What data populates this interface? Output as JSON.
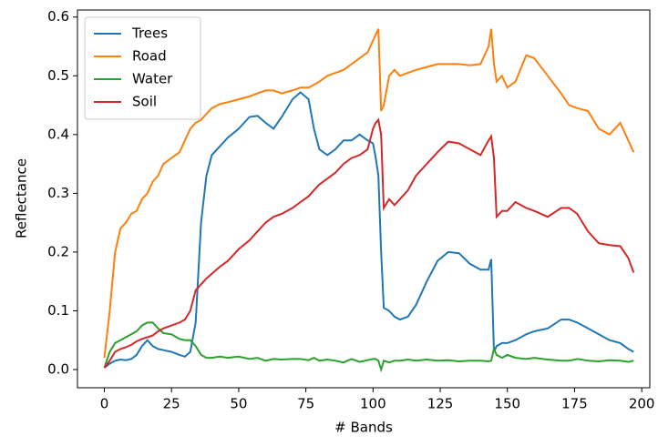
{
  "chart_data": {
    "type": "line",
    "xlabel": "# Bands",
    "ylabel": "Reflectance",
    "x": [
      0,
      2,
      4,
      6,
      8,
      10,
      12,
      14,
      16,
      18,
      20,
      22,
      25,
      28,
      30,
      32,
      34,
      36,
      38,
      40,
      43,
      46,
      50,
      54,
      57,
      60,
      63,
      66,
      70,
      73,
      76,
      78,
      80,
      83,
      86,
      89,
      92,
      95,
      98,
      100,
      101,
      102,
      103,
      104,
      106,
      108,
      110,
      113,
      116,
      120,
      124,
      128,
      132,
      136,
      140,
      143,
      144,
      145,
      146,
      148,
      150,
      153,
      157,
      160,
      165,
      170,
      173,
      176,
      180,
      184,
      188,
      192,
      195,
      197
    ],
    "series": [
      {
        "name": "Trees",
        "color": "#1f77b4",
        "values": [
          0.003,
          0.01,
          0.015,
          0.017,
          0.016,
          0.018,
          0.025,
          0.04,
          0.05,
          0.04,
          0.035,
          0.033,
          0.03,
          0.025,
          0.022,
          0.03,
          0.08,
          0.25,
          0.33,
          0.365,
          0.38,
          0.395,
          0.41,
          0.43,
          0.432,
          0.42,
          0.41,
          0.43,
          0.46,
          0.472,
          0.46,
          0.41,
          0.375,
          0.365,
          0.375,
          0.39,
          0.39,
          0.4,
          0.39,
          0.385,
          0.36,
          0.33,
          0.2,
          0.105,
          0.1,
          0.09,
          0.085,
          0.09,
          0.11,
          0.15,
          0.185,
          0.2,
          0.198,
          0.18,
          0.17,
          0.17,
          0.188,
          0.03,
          0.04,
          0.045,
          0.045,
          0.05,
          0.06,
          0.065,
          0.07,
          0.085,
          0.085,
          0.08,
          0.07,
          0.06,
          0.05,
          0.045,
          0.035,
          0.03
        ]
      },
      {
        "name": "Road",
        "color": "#ff7f0e",
        "values": [
          0.02,
          0.1,
          0.2,
          0.24,
          0.25,
          0.265,
          0.27,
          0.29,
          0.3,
          0.32,
          0.33,
          0.35,
          0.36,
          0.37,
          0.39,
          0.41,
          0.42,
          0.425,
          0.435,
          0.445,
          0.452,
          0.455,
          0.46,
          0.465,
          0.47,
          0.475,
          0.475,
          0.47,
          0.475,
          0.48,
          0.48,
          0.485,
          0.49,
          0.5,
          0.505,
          0.51,
          0.52,
          0.53,
          0.54,
          0.56,
          0.57,
          0.58,
          0.44,
          0.45,
          0.5,
          0.51,
          0.5,
          0.505,
          0.51,
          0.515,
          0.52,
          0.52,
          0.52,
          0.518,
          0.52,
          0.55,
          0.58,
          0.52,
          0.49,
          0.5,
          0.48,
          0.49,
          0.535,
          0.53,
          0.5,
          0.47,
          0.45,
          0.445,
          0.44,
          0.41,
          0.4,
          0.42,
          0.39,
          0.37
        ]
      },
      {
        "name": "Water",
        "color": "#2ca02c",
        "values": [
          0.003,
          0.03,
          0.045,
          0.05,
          0.055,
          0.06,
          0.065,
          0.075,
          0.08,
          0.08,
          0.07,
          0.062,
          0.06,
          0.052,
          0.05,
          0.05,
          0.04,
          0.025,
          0.02,
          0.02,
          0.022,
          0.02,
          0.022,
          0.018,
          0.02,
          0.015,
          0.018,
          0.017,
          0.018,
          0.018,
          0.016,
          0.02,
          0.015,
          0.017,
          0.015,
          0.012,
          0.018,
          0.013,
          0.016,
          0.018,
          0.018,
          0.015,
          0.0,
          0.015,
          0.012,
          0.015,
          0.015,
          0.017,
          0.015,
          0.017,
          0.015,
          0.016,
          0.014,
          0.015,
          0.015,
          0.014,
          0.015,
          0.035,
          0.025,
          0.02,
          0.025,
          0.02,
          0.018,
          0.02,
          0.017,
          0.015,
          0.015,
          0.018,
          0.015,
          0.014,
          0.016,
          0.015,
          0.013,
          0.015
        ]
      },
      {
        "name": "Soil",
        "color": "#d62728",
        "values": [
          0.003,
          0.015,
          0.03,
          0.035,
          0.038,
          0.042,
          0.048,
          0.052,
          0.055,
          0.058,
          0.065,
          0.07,
          0.075,
          0.08,
          0.085,
          0.1,
          0.135,
          0.145,
          0.155,
          0.163,
          0.175,
          0.185,
          0.205,
          0.22,
          0.235,
          0.25,
          0.26,
          0.265,
          0.275,
          0.285,
          0.295,
          0.305,
          0.315,
          0.325,
          0.335,
          0.35,
          0.36,
          0.365,
          0.375,
          0.41,
          0.42,
          0.425,
          0.4,
          0.275,
          0.29,
          0.28,
          0.29,
          0.305,
          0.33,
          0.35,
          0.37,
          0.388,
          0.385,
          0.375,
          0.365,
          0.39,
          0.397,
          0.36,
          0.26,
          0.27,
          0.27,
          0.285,
          0.275,
          0.27,
          0.26,
          0.275,
          0.275,
          0.265,
          0.235,
          0.215,
          0.212,
          0.21,
          0.19,
          0.165
        ]
      }
    ],
    "xlim": [
      -10,
      203
    ],
    "ylim": [
      -0.031,
      0.612
    ],
    "xticks": [
      0,
      25,
      50,
      75,
      100,
      125,
      150,
      175,
      200
    ],
    "yticks": [
      {
        "value": 0,
        "label": "0.0"
      },
      {
        "value": 0.1,
        "label": "0.1"
      },
      {
        "value": 0.2,
        "label": "0.2"
      },
      {
        "value": 0.3,
        "label": "0.3"
      },
      {
        "value": 0.4,
        "label": "0.4"
      },
      {
        "value": 0.5,
        "label": "0.5"
      },
      {
        "value": 0.6,
        "label": "0.6"
      }
    ],
    "legend_loc": "upper left"
  }
}
